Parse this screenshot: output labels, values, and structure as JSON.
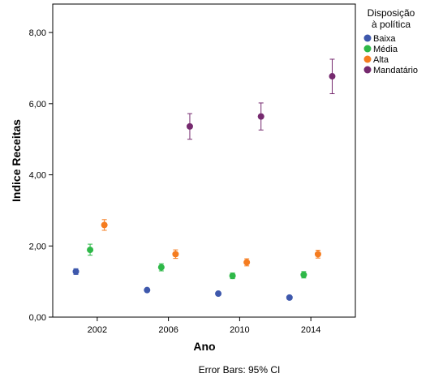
{
  "chart_data": {
    "type": "scatter",
    "xlabel": "Ano",
    "ylabel": "Indice Receitas",
    "xlim": [
      1999.5,
      2016.5
    ],
    "ylim": [
      0,
      8.8
    ],
    "x_ticks": [
      2002,
      2006,
      2010,
      2014
    ],
    "x_tick_labels": [
      "2002",
      "2006",
      "2010",
      "2014"
    ],
    "y_ticks": [
      0,
      2,
      4,
      6,
      8
    ],
    "y_tick_labels": [
      "0,00",
      "2,00",
      "4,00",
      "6,00",
      "8,00"
    ],
    "grid": false,
    "legend": {
      "title_line1": "Disposição",
      "title_line2": "à política",
      "position": "right"
    },
    "series": [
      {
        "name": "Baixa",
        "color": "#3e58ac",
        "points": [
          {
            "x": 2000.8,
            "y": 1.28,
            "lo": 1.2,
            "hi": 1.36
          },
          {
            "x": 2004.8,
            "y": 0.76,
            "lo": 0.72,
            "hi": 0.8
          },
          {
            "x": 2008.8,
            "y": 0.66,
            "lo": 0.62,
            "hi": 0.7
          },
          {
            "x": 2012.8,
            "y": 0.55,
            "lo": 0.51,
            "hi": 0.59
          }
        ]
      },
      {
        "name": "Média",
        "color": "#2eb848",
        "points": [
          {
            "x": 2001.6,
            "y": 1.89,
            "lo": 1.74,
            "hi": 2.05
          },
          {
            "x": 2005.6,
            "y": 1.4,
            "lo": 1.3,
            "hi": 1.5
          },
          {
            "x": 2009.6,
            "y": 1.16,
            "lo": 1.08,
            "hi": 1.24
          },
          {
            "x": 2013.6,
            "y": 1.19,
            "lo": 1.1,
            "hi": 1.28
          }
        ]
      },
      {
        "name": "Alta",
        "color": "#f57c1f",
        "points": [
          {
            "x": 2002.4,
            "y": 2.59,
            "lo": 2.44,
            "hi": 2.74
          },
          {
            "x": 2006.4,
            "y": 1.77,
            "lo": 1.65,
            "hi": 1.89
          },
          {
            "x": 2010.4,
            "y": 1.54,
            "lo": 1.44,
            "hi": 1.64
          },
          {
            "x": 2014.4,
            "y": 1.77,
            "lo": 1.66,
            "hi": 1.88
          }
        ]
      },
      {
        "name": "Mandatário",
        "color": "#762a6f",
        "points": [
          {
            "x": 2007.2,
            "y": 5.36,
            "lo": 5.0,
            "hi": 5.72
          },
          {
            "x": 2011.2,
            "y": 5.64,
            "lo": 5.26,
            "hi": 6.02
          },
          {
            "x": 2015.2,
            "y": 6.77,
            "lo": 6.28,
            "hi": 7.25
          }
        ]
      }
    ],
    "footnote": "Error Bars: 95% CI"
  }
}
